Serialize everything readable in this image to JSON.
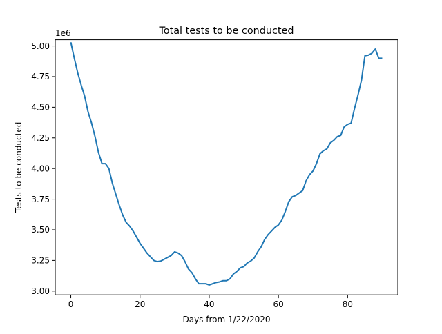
{
  "chart_data": {
    "type": "line",
    "title": "Total tests to be conducted",
    "xlabel": "Days from 1/22/2020",
    "ylabel": "Tests to be conducted",
    "offset_label": "1e6",
    "xlim": [
      -4.5,
      94.5
    ],
    "ylim": [
      2.9695,
      5.0505
    ],
    "x_ticks": [
      0,
      20,
      40,
      60,
      80
    ],
    "x_tick_labels": [
      "0",
      "20",
      "40",
      "60",
      "80"
    ],
    "y_ticks": [
      3.0,
      3.25,
      3.5,
      3.75,
      4.0,
      4.25,
      4.5,
      4.75,
      5.0
    ],
    "y_tick_labels": [
      "3.00",
      "3.25",
      "3.50",
      "3.75",
      "4.00",
      "4.25",
      "4.50",
      "4.75",
      "5.00"
    ],
    "grid": false,
    "line_color": "#1f77b4",
    "series": [
      {
        "x": [
          0,
          1,
          2,
          3,
          4,
          5,
          6,
          7,
          8,
          9,
          10,
          11,
          12,
          13,
          14,
          15,
          16,
          17,
          18,
          19,
          20,
          21,
          22,
          23,
          24,
          25,
          26,
          27,
          28,
          29,
          30,
          31,
          32,
          33,
          34,
          35,
          36,
          37,
          38,
          39,
          40,
          41,
          42,
          43,
          44,
          45,
          46,
          47,
          48,
          49,
          50,
          51,
          52,
          53,
          54,
          55,
          56,
          57,
          58,
          59,
          60,
          61,
          62,
          63,
          64,
          65,
          66,
          67,
          68,
          69,
          70,
          71,
          72,
          73,
          74,
          75,
          76,
          77,
          78,
          79,
          80,
          81,
          82,
          83,
          84,
          85,
          86,
          87,
          88,
          89,
          90
        ],
        "y": [
          5.03,
          4.9,
          4.78,
          4.68,
          4.59,
          4.46,
          4.37,
          4.26,
          4.13,
          4.04,
          4.04,
          4.0,
          3.88,
          3.79,
          3.7,
          3.62,
          3.56,
          3.53,
          3.49,
          3.44,
          3.39,
          3.35,
          3.31,
          3.28,
          3.25,
          3.24,
          3.245,
          3.26,
          3.275,
          3.29,
          3.32,
          3.31,
          3.29,
          3.24,
          3.18,
          3.15,
          3.1,
          3.06,
          3.06,
          3.06,
          3.05,
          3.06,
          3.07,
          3.075,
          3.085,
          3.085,
          3.1,
          3.14,
          3.16,
          3.19,
          3.2,
          3.23,
          3.245,
          3.27,
          3.32,
          3.36,
          3.42,
          3.46,
          3.49,
          3.52,
          3.54,
          3.58,
          3.65,
          3.73,
          3.77,
          3.78,
          3.8,
          3.82,
          3.9,
          3.95,
          3.98,
          4.04,
          4.12,
          4.145,
          4.16,
          4.21,
          4.23,
          4.26,
          4.27,
          4.34,
          4.36,
          4.37,
          4.49,
          4.6,
          4.72,
          4.92,
          4.925,
          4.94,
          4.975,
          4.9,
          4.9
        ]
      }
    ]
  }
}
